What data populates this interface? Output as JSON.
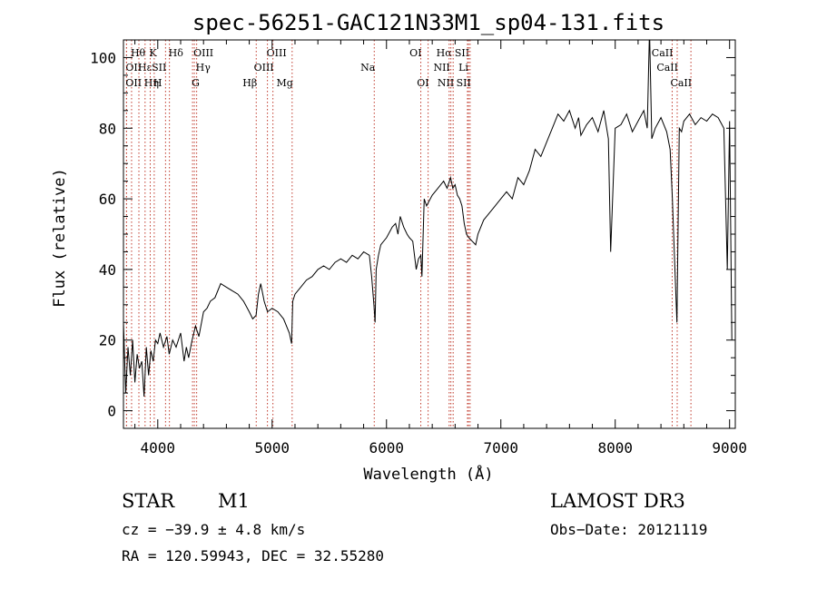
{
  "chart_data": {
    "type": "line",
    "title": "spec-56251-GAC121N33M1_sp04-131.fits",
    "xlabel": "Wavelength (Å)",
    "ylabel": "Flux (relative)",
    "xlim": [
      3700,
      9050
    ],
    "ylim": [
      -5,
      105
    ],
    "xticks": [
      4000,
      5000,
      6000,
      7000,
      8000,
      9000
    ],
    "yticks": [
      0,
      20,
      40,
      60,
      80,
      100
    ],
    "grid": false,
    "line_color": "#000000",
    "marker_color": "#c0392b",
    "series": [
      {
        "name": "flux",
        "x": [
          3700,
          3720,
          3740,
          3760,
          3780,
          3800,
          3820,
          3840,
          3860,
          3880,
          3900,
          3920,
          3940,
          3960,
          3980,
          4000,
          4020,
          4050,
          4080,
          4100,
          4130,
          4160,
          4200,
          4230,
          4250,
          4270,
          4300,
          4330,
          4360,
          4400,
          4430,
          4460,
          4500,
          4550,
          4600,
          4650,
          4700,
          4750,
          4800,
          4830,
          4860,
          4880,
          4900,
          4930,
          4960,
          5000,
          5050,
          5100,
          5150,
          5170,
          5180,
          5200,
          5250,
          5300,
          5350,
          5400,
          5450,
          5500,
          5550,
          5600,
          5650,
          5700,
          5750,
          5800,
          5850,
          5870,
          5890,
          5900,
          5910,
          5930,
          5950,
          6000,
          6050,
          6080,
          6100,
          6120,
          6150,
          6180,
          6200,
          6230,
          6260,
          6280,
          6300,
          6310,
          6330,
          6350,
          6400,
          6450,
          6500,
          6530,
          6560,
          6580,
          6600,
          6620,
          6640,
          6660,
          6680,
          6700,
          6720,
          6750,
          6780,
          6800,
          6850,
          6900,
          6950,
          7000,
          7050,
          7100,
          7150,
          7200,
          7250,
          7300,
          7350,
          7400,
          7450,
          7500,
          7550,
          7600,
          7650,
          7680,
          7700,
          7750,
          7800,
          7850,
          7900,
          7940,
          7960,
          8000,
          8050,
          8100,
          8150,
          8200,
          8250,
          8280,
          8300,
          8320,
          8350,
          8400,
          8450,
          8480,
          8500,
          8520,
          8540,
          8560,
          8580,
          8600,
          8650,
          8700,
          8750,
          8800,
          8850,
          8900,
          8950,
          8980,
          9000,
          9020
        ],
        "y": [
          25,
          5,
          18,
          10,
          20,
          8,
          16,
          12,
          14,
          4,
          18,
          10,
          17,
          14,
          20,
          19,
          22,
          18,
          21,
          16,
          20,
          18,
          22,
          14,
          18,
          15,
          20,
          24,
          21,
          28,
          29,
          31,
          32,
          36,
          35,
          34,
          33,
          31,
          28,
          26,
          27,
          33,
          36,
          31,
          28,
          29,
          28,
          26,
          22,
          19,
          31,
          33,
          35,
          37,
          38,
          40,
          41,
          40,
          42,
          43,
          42,
          44,
          43,
          45,
          44,
          38,
          30,
          25,
          40,
          44,
          47,
          49,
          52,
          53,
          50,
          55,
          52,
          50,
          49,
          48,
          40,
          43,
          44,
          38,
          60,
          58,
          61,
          63,
          65,
          63,
          66,
          63,
          64,
          61,
          60,
          58,
          53,
          50,
          49,
          48,
          47,
          50,
          54,
          56,
          58,
          60,
          62,
          60,
          66,
          64,
          68,
          74,
          72,
          76,
          80,
          84,
          82,
          85,
          80,
          83,
          78,
          81,
          83,
          79,
          85,
          77,
          45,
          80,
          81,
          84,
          79,
          82,
          85,
          80,
          108,
          77,
          80,
          83,
          79,
          74,
          60,
          42,
          25,
          80,
          79,
          82,
          84,
          81,
          83,
          82,
          84,
          83,
          80,
          40,
          82,
          20
        ]
      }
    ],
    "line_markers": [
      {
        "label": "Hθ",
        "x": 3771,
        "row": 0,
        "side": "r"
      },
      {
        "label": "OII",
        "x": 3727,
        "row": 1,
        "side": "r"
      },
      {
        "label": "OII",
        "x": 3727,
        "row": 2,
        "side": "r"
      },
      {
        "label": "Hε",
        "x": 3835,
        "row": 1,
        "side": "r"
      },
      {
        "label": "Hη",
        "x": 3889,
        "row": 2,
        "side": "r"
      },
      {
        "label": "K",
        "x": 3934,
        "row": 0,
        "side": "r"
      },
      {
        "label": "SII",
        "x": 4068,
        "row": 1,
        "side": "l"
      },
      {
        "label": "H",
        "x": 3969,
        "row": 2,
        "side": "r"
      },
      {
        "label": "Hδ",
        "x": 4102,
        "row": 0,
        "side": "r"
      },
      {
        "label": "OIII",
        "x": 4320,
        "row": 0,
        "side": "r"
      },
      {
        "label": "Hγ",
        "x": 4340,
        "row": 1,
        "side": "r"
      },
      {
        "label": "G",
        "x": 4304,
        "row": 2,
        "side": "r"
      },
      {
        "label": "Hβ",
        "x": 4861,
        "row": 2,
        "side": "l"
      },
      {
        "label": "OIII",
        "x": 4959,
        "row": 0,
        "side": "r"
      },
      {
        "label": "OIII",
        "x": 5007,
        "row": 1,
        "side": "l"
      },
      {
        "label": "Mg",
        "x": 5175,
        "row": 2,
        "side": "l"
      },
      {
        "label": "Na",
        "x": 5893,
        "row": 1,
        "side": "l"
      },
      {
        "label": "OI",
        "x": 6300,
        "row": 0,
        "side": "l"
      },
      {
        "label": "OI",
        "x": 6364,
        "row": 2,
        "side": "l"
      },
      {
        "label": "Hα",
        "x": 6563,
        "row": 0,
        "side": "l"
      },
      {
        "label": "NII",
        "x": 6548,
        "row": 1,
        "side": "l"
      },
      {
        "label": "NII",
        "x": 6583,
        "row": 2,
        "side": "l"
      },
      {
        "label": "SII",
        "x": 6717,
        "row": 0,
        "side": "l"
      },
      {
        "label": "Li",
        "x": 6708,
        "row": 1,
        "side": "l"
      },
      {
        "label": "SII",
        "x": 6731,
        "row": 2,
        "side": "l"
      },
      {
        "label": "CaII",
        "x": 8498,
        "row": 0,
        "side": "l"
      },
      {
        "label": "CaII",
        "x": 8542,
        "row": 1,
        "side": "l"
      },
      {
        "label": "CaII",
        "x": 8662,
        "row": 2,
        "side": "l"
      }
    ]
  },
  "info": {
    "object_class": "STAR",
    "subclass": "M1",
    "survey": "LAMOST DR3",
    "cz": "cz = −39.9 ± 4.8 km/s",
    "obs_date": "Obs−Date: 20121119",
    "radec": "RA = 120.59943, DEC =  32.55280"
  }
}
